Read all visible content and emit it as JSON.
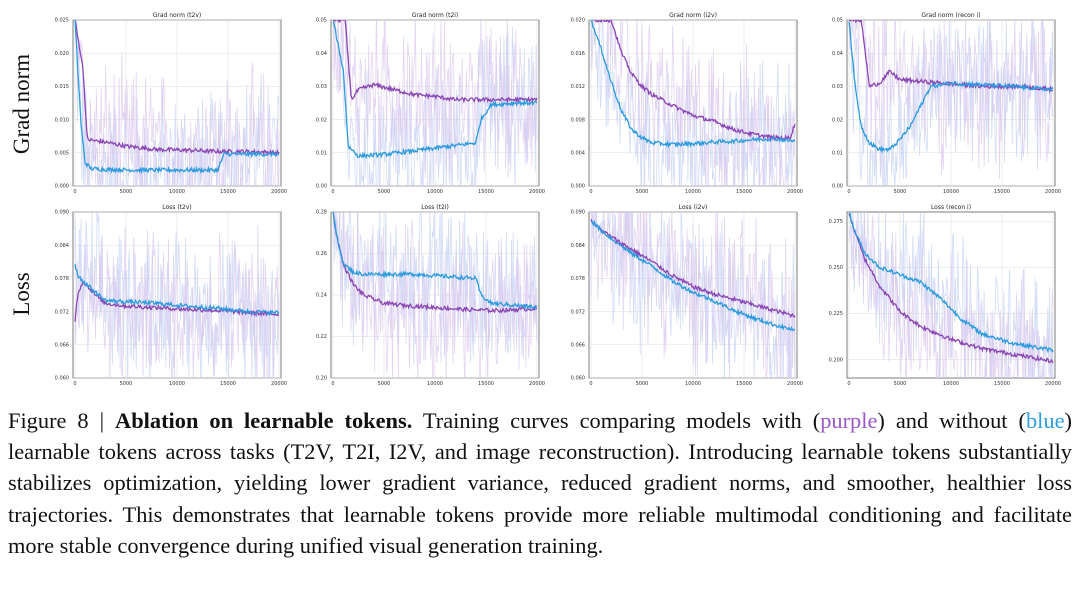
{
  "row_labels": [
    "Grad norm",
    "Loss"
  ],
  "chart_data": [
    {
      "type": "line",
      "title": "Grad norm (t2v)",
      "ylim": [
        0.0,
        0.025
      ],
      "yticks": [
        0.0,
        0.005,
        0.01,
        0.015,
        0.02,
        0.025
      ],
      "yticklabels": [
        "0.000",
        "0.005",
        "0.010",
        "0.015",
        "0.020",
        "0.025"
      ],
      "xlim": [
        0,
        20000
      ],
      "xticks": [
        0,
        5000,
        10000,
        15000,
        20000
      ],
      "xticklabels": [
        "0",
        "5000",
        "10000",
        "15000",
        "20000"
      ],
      "grid": true,
      "series": [
        {
          "name": "with learnable tokens",
          "color": "#8a45b5",
          "band": "#d9c7ee",
          "x": [
            0,
            800,
            1200,
            2000,
            3000,
            5000,
            8000,
            11000,
            14000,
            17000,
            20000
          ],
          "y": [
            0.025,
            0.0175,
            0.007,
            0.0068,
            0.0066,
            0.006,
            0.0055,
            0.0054,
            0.0052,
            0.0052,
            0.005
          ]
        },
        {
          "name": "without learnable tokens",
          "color": "#2b9be0",
          "band": "#c4d0f4",
          "x": [
            0,
            600,
            1000,
            1600,
            3000,
            6000,
            10000,
            14000,
            14600,
            17000,
            20000
          ],
          "y": [
            0.025,
            0.009,
            0.0035,
            0.0026,
            0.0025,
            0.0024,
            0.0024,
            0.0024,
            0.0048,
            0.0048,
            0.0048
          ]
        }
      ]
    },
    {
      "type": "line",
      "title": "Grad norm (t2i)",
      "ylim": [
        0.0,
        0.05
      ],
      "yticks": [
        0.0,
        0.01,
        0.02,
        0.03,
        0.04,
        0.05
      ],
      "yticklabels": [
        "0.00",
        "0.01",
        "0.02",
        "0.03",
        "0.04",
        "0.05"
      ],
      "xlim": [
        0,
        20000
      ],
      "xticks": [
        0,
        5000,
        10000,
        15000,
        20000
      ],
      "xticklabels": [
        "0",
        "5000",
        "10000",
        "15000",
        "20000"
      ],
      "grid": true,
      "series": [
        {
          "name": "with learnable tokens",
          "color": "#8a45b5",
          "band": "#d9c7ee",
          "x": [
            0,
            1200,
            1800,
            2500,
            4000,
            6000,
            8000,
            10000,
            12000,
            14000,
            16000,
            18000,
            20000
          ],
          "y": [
            0.05,
            0.05,
            0.026,
            0.029,
            0.0305,
            0.029,
            0.0275,
            0.027,
            0.026,
            0.026,
            0.026,
            0.026,
            0.026
          ]
        },
        {
          "name": "without learnable tokens",
          "color": "#2b9be0",
          "band": "#c4d0f4",
          "x": [
            0,
            1000,
            1500,
            2500,
            5000,
            9000,
            14000,
            14500,
            15500,
            18000,
            20000
          ],
          "y": [
            0.05,
            0.035,
            0.012,
            0.009,
            0.0095,
            0.011,
            0.013,
            0.02,
            0.0245,
            0.025,
            0.025
          ]
        }
      ]
    },
    {
      "type": "line",
      "title": "Grad norm (i2v)",
      "ylim": [
        0.0,
        0.02
      ],
      "yticks": [
        0.0,
        0.004,
        0.008,
        0.012,
        0.016,
        0.02
      ],
      "yticklabels": [
        "0.000",
        "0.004",
        "0.008",
        "0.012",
        "0.016",
        "0.020"
      ],
      "xlim": [
        0,
        20000
      ],
      "xticks": [
        0,
        5000,
        10000,
        15000,
        20000
      ],
      "xticklabels": [
        "0",
        "5000",
        "10000",
        "15000",
        "20000"
      ],
      "grid": true,
      "series": [
        {
          "name": "with learnable tokens",
          "color": "#8a45b5",
          "band": "#d9c7ee",
          "x": [
            0,
            2000,
            3000,
            4000,
            5000,
            6000,
            8000,
            10000,
            12000,
            14000,
            16000,
            18000,
            19500,
            20000
          ],
          "y": [
            0.02,
            0.02,
            0.016,
            0.0135,
            0.012,
            0.011,
            0.0097,
            0.0085,
            0.0078,
            0.0068,
            0.0062,
            0.0058,
            0.0058,
            0.0075
          ]
        },
        {
          "name": "without learnable tokens",
          "color": "#2b9be0",
          "band": "#c4d0f4",
          "x": [
            0,
            1000,
            2000,
            3000,
            4000,
            5000,
            6000,
            8000,
            10000,
            12000,
            14000,
            16000,
            18000,
            20000
          ],
          "y": [
            0.02,
            0.0165,
            0.0125,
            0.009,
            0.0068,
            0.0058,
            0.0052,
            0.005,
            0.0051,
            0.0053,
            0.0054,
            0.0056,
            0.0057,
            0.0054
          ]
        }
      ]
    },
    {
      "type": "line",
      "title": "Grad norm (recon i)",
      "ylim": [
        0.0,
        0.05
      ],
      "yticks": [
        0.0,
        0.01,
        0.02,
        0.03,
        0.04,
        0.05
      ],
      "yticklabels": [
        "0.00",
        "0.01",
        "0.02",
        "0.03",
        "0.04",
        "0.05"
      ],
      "xlim": [
        0,
        20000
      ],
      "xticks": [
        0,
        5000,
        10000,
        15000,
        20000
      ],
      "xticklabels": [
        "0",
        "5000",
        "10000",
        "15000",
        "20000"
      ],
      "grid": true,
      "series": [
        {
          "name": "with learnable tokens",
          "color": "#8a45b5",
          "band": "#d9c7ee",
          "x": [
            0,
            1200,
            2000,
            3000,
            4000,
            5000,
            7000,
            9000,
            11000,
            13000,
            15000,
            17000,
            20000
          ],
          "y": [
            0.05,
            0.05,
            0.03,
            0.031,
            0.0345,
            0.032,
            0.0315,
            0.031,
            0.0305,
            0.03,
            0.03,
            0.03,
            0.029
          ]
        },
        {
          "name": "without learnable tokens",
          "color": "#2b9be0",
          "band": "#c4d0f4",
          "x": [
            0,
            600,
            1200,
            2000,
            3000,
            4000,
            5000,
            6000,
            7000,
            8000,
            10000,
            13000,
            16000,
            20000
          ],
          "y": [
            0.05,
            0.03,
            0.018,
            0.013,
            0.011,
            0.011,
            0.014,
            0.018,
            0.024,
            0.03,
            0.031,
            0.0305,
            0.03,
            0.029
          ]
        }
      ]
    },
    {
      "type": "line",
      "title": "Loss (t2v)",
      "ylim": [
        0.06,
        0.09
      ],
      "yticks": [
        0.06,
        0.066,
        0.072,
        0.078,
        0.084,
        0.09
      ],
      "yticklabels": [
        "0.060",
        "0.066",
        "0.072",
        "0.078",
        "0.084",
        "0.090"
      ],
      "xlim": [
        0,
        20000
      ],
      "xticks": [
        0,
        5000,
        10000,
        15000,
        20000
      ],
      "xticklabels": [
        "0",
        "5000",
        "10000",
        "15000",
        "20000"
      ],
      "grid": true,
      "series": [
        {
          "name": "with learnable tokens",
          "color": "#8a45b5",
          "band": "#d9c7ee",
          "x": [
            0,
            300,
            800,
            2000,
            3000,
            5000,
            8000,
            11000,
            14000,
            17000,
            20000
          ],
          "y": [
            0.0705,
            0.0755,
            0.0775,
            0.075,
            0.0735,
            0.073,
            0.0727,
            0.0724,
            0.0722,
            0.0718,
            0.0715
          ]
        },
        {
          "name": "without learnable tokens",
          "color": "#2b9be0",
          "band": "#c4d0f4",
          "x": [
            0,
            300,
            800,
            2000,
            3000,
            5000,
            8000,
            11000,
            14000,
            17000,
            20000
          ],
          "y": [
            0.0805,
            0.0785,
            0.0775,
            0.0755,
            0.074,
            0.0738,
            0.0735,
            0.073,
            0.0726,
            0.072,
            0.0718
          ]
        }
      ]
    },
    {
      "type": "line",
      "title": "Loss (t2i)",
      "ylim": [
        0.2,
        0.28
      ],
      "yticks": [
        0.2,
        0.22,
        0.24,
        0.26,
        0.28
      ],
      "yticklabels": [
        "0.20",
        "0.22",
        "0.24",
        "0.26",
        "0.28"
      ],
      "xlim": [
        0,
        20000
      ],
      "xticks": [
        0,
        5000,
        10000,
        15000,
        20000
      ],
      "xticklabels": [
        "0",
        "5000",
        "10000",
        "15000",
        "20000"
      ],
      "grid": true,
      "series": [
        {
          "name": "with learnable tokens",
          "color": "#8a45b5",
          "band": "#d9c7ee",
          "x": [
            0,
            300,
            1000,
            2000,
            3000,
            4000,
            5000,
            7000,
            10000,
            13000,
            16000,
            20000
          ],
          "y": [
            0.28,
            0.27,
            0.255,
            0.245,
            0.24,
            0.238,
            0.236,
            0.235,
            0.234,
            0.233,
            0.2325,
            0.2335
          ]
        },
        {
          "name": "without learnable tokens",
          "color": "#2b9be0",
          "band": "#c4d0f4",
          "x": [
            0,
            300,
            1000,
            2000,
            3000,
            5000,
            8000,
            11000,
            14000,
            14500,
            15500,
            18000,
            20000
          ],
          "y": [
            0.28,
            0.27,
            0.255,
            0.251,
            0.25,
            0.25,
            0.25,
            0.249,
            0.248,
            0.24,
            0.236,
            0.235,
            0.234
          ]
        }
      ]
    },
    {
      "type": "line",
      "title": "Loss (i2v)",
      "ylim": [
        0.06,
        0.09
      ],
      "yticks": [
        0.06,
        0.066,
        0.072,
        0.078,
        0.084,
        0.09
      ],
      "yticklabels": [
        "0.060",
        "0.066",
        "0.072",
        "0.078",
        "0.084",
        "0.090"
      ],
      "xlim": [
        0,
        20000
      ],
      "xticks": [
        0,
        5000,
        10000,
        15000,
        20000
      ],
      "xticklabels": [
        "0",
        "5000",
        "10000",
        "15000",
        "20000"
      ],
      "grid": true,
      "series": [
        {
          "name": "with learnable tokens",
          "color": "#8a45b5",
          "band": "#d9c7ee",
          "x": [
            0,
            800,
            2000,
            4000,
            6000,
            8000,
            10000,
            12000,
            14000,
            16000,
            18000,
            20000
          ],
          "y": [
            0.0885,
            0.087,
            0.0855,
            0.0832,
            0.081,
            0.0785,
            0.0765,
            0.0752,
            0.0742,
            0.0732,
            0.0722,
            0.0712
          ]
        },
        {
          "name": "without learnable tokens",
          "color": "#2b9be0",
          "band": "#c4d0f4",
          "x": [
            0,
            800,
            2000,
            4000,
            6000,
            8000,
            10000,
            12000,
            14000,
            16000,
            18000,
            20000
          ],
          "y": [
            0.0885,
            0.087,
            0.0852,
            0.0825,
            0.0802,
            0.0775,
            0.0755,
            0.074,
            0.0722,
            0.0708,
            0.0696,
            0.0686
          ]
        }
      ]
    },
    {
      "type": "line",
      "title": "Loss (recon i)",
      "ylim": [
        0.19,
        0.28
      ],
      "yticks": [
        0.2,
        0.225,
        0.25,
        0.275
      ],
      "yticklabels": [
        "0.200",
        "0.225",
        "0.250",
        "0.275"
      ],
      "xlim": [
        0,
        20000
      ],
      "xticks": [
        0,
        5000,
        10000,
        15000,
        20000
      ],
      "xticklabels": [
        "0",
        "5000",
        "10000",
        "15000",
        "20000"
      ],
      "grid": true,
      "series": [
        {
          "name": "with learnable tokens",
          "color": "#8a45b5",
          "band": "#d9c7ee",
          "x": [
            0,
            400,
            1500,
            3000,
            5000,
            7000,
            10000,
            13000,
            16000,
            20000
          ],
          "y": [
            0.28,
            0.272,
            0.255,
            0.24,
            0.226,
            0.218,
            0.211,
            0.206,
            0.203,
            0.199
          ]
        },
        {
          "name": "without learnable tokens",
          "color": "#2b9be0",
          "band": "#c4d0f4",
          "x": [
            0,
            400,
            1500,
            3000,
            5000,
            7000,
            9000,
            11000,
            13000,
            16000,
            20000
          ],
          "y": [
            0.28,
            0.272,
            0.258,
            0.25,
            0.246,
            0.242,
            0.233,
            0.222,
            0.214,
            0.209,
            0.205
          ]
        }
      ]
    }
  ],
  "caption": {
    "prefix": "Figure 8 | ",
    "title": "Ablation on learnable tokens.",
    "text1": " Training curves comparing models with (",
    "purple_word": "purple",
    "text2": ") and without (",
    "blue_word": "blue",
    "text3": ") learnable tokens across tasks (T2V, T2I, I2V, and image reconstruction). Introducing learnable tokens substantially stabilizes optimization, yielding lower gradient variance, reduced gradient norms, and smoother, healthier loss trajectories. This demonstrates that learnable tokens provide more reliable multimodal conditioning and facilitate more stable convergence during unified visual generation training.",
    "purple_color": "#9b59c6",
    "blue_color": "#2e9fe0"
  }
}
